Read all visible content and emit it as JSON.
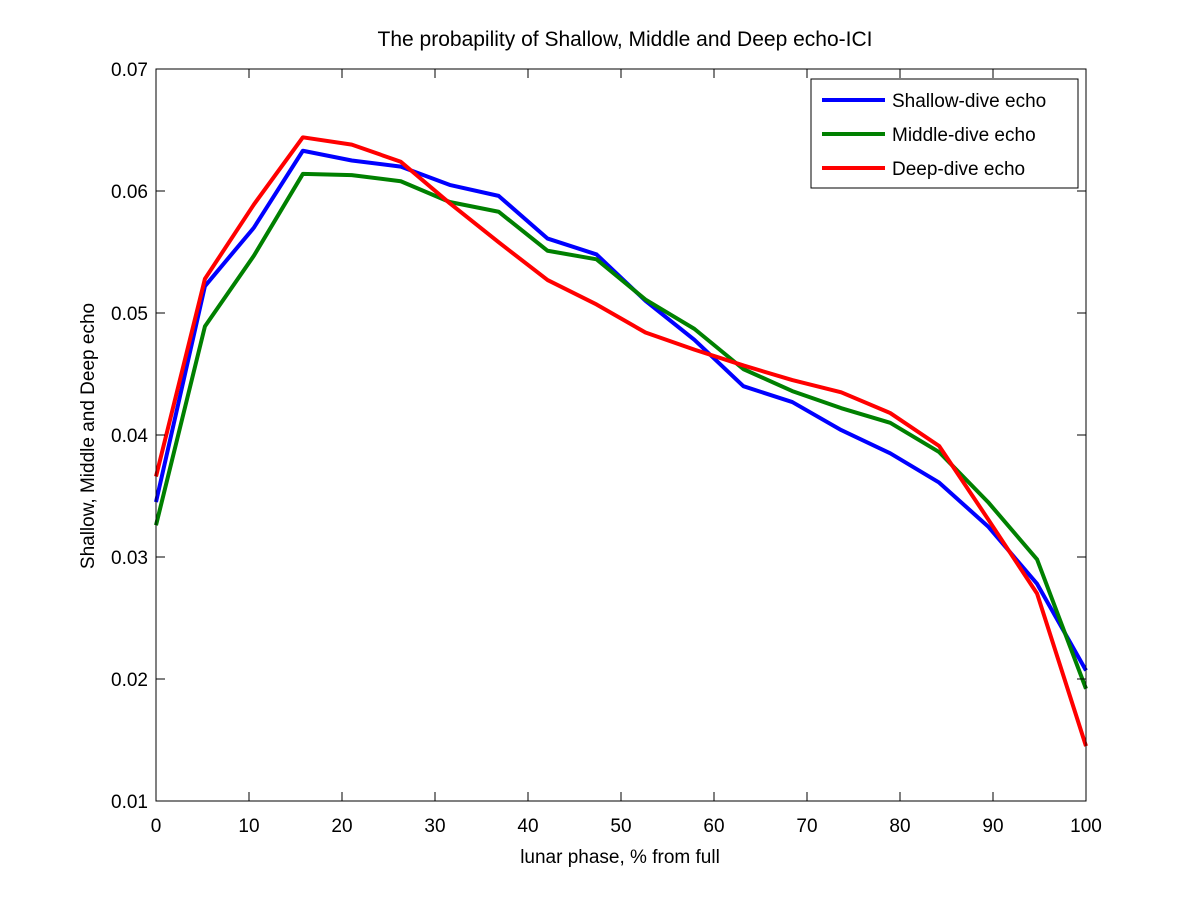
{
  "chart_data": {
    "type": "line",
    "title": "The probapility of Shallow, Middle and Deep echo-ICI",
    "xlabel": "lunar phase, % from full",
    "ylabel": "Shallow, Middle and Deep echo",
    "xlim": [
      0,
      100
    ],
    "ylim": [
      0.01,
      0.07
    ],
    "xticks": [
      0,
      10,
      20,
      30,
      40,
      50,
      60,
      70,
      80,
      90,
      100
    ],
    "xtick_labels": [
      "0",
      "10",
      "20",
      "30",
      "40",
      "50",
      "60",
      "70",
      "80",
      "90",
      "100"
    ],
    "yticks": [
      0.01,
      0.02,
      0.03,
      0.04,
      0.05,
      0.06,
      0.07
    ],
    "ytick_labels": [
      "0.01",
      "0.02",
      "0.03",
      "0.04",
      "0.05",
      "0.06",
      "0.07"
    ],
    "grid": false,
    "legend_position": "top-right",
    "x": [
      0,
      5.26,
      10.53,
      15.79,
      21.05,
      26.32,
      31.58,
      36.84,
      42.11,
      47.37,
      52.63,
      57.89,
      63.16,
      68.42,
      73.68,
      78.95,
      84.21,
      89.47,
      94.74,
      100
    ],
    "series": [
      {
        "name": "Shallow-dive echo",
        "color": "#0000ff",
        "values": [
          0.0345,
          0.0522,
          0.057,
          0.0633,
          0.0625,
          0.062,
          0.0605,
          0.0596,
          0.0561,
          0.0548,
          0.051,
          0.0478,
          0.044,
          0.0427,
          0.0404,
          0.0385,
          0.0361,
          0.0325,
          0.0278,
          0.0207
        ]
      },
      {
        "name": "Middle-dive echo",
        "color": "#008000",
        "values": [
          0.0326,
          0.0489,
          0.0547,
          0.0614,
          0.0613,
          0.0608,
          0.0591,
          0.0583,
          0.0551,
          0.0544,
          0.0511,
          0.0487,
          0.0454,
          0.0436,
          0.0422,
          0.041,
          0.0386,
          0.0345,
          0.0298,
          0.0192
        ]
      },
      {
        "name": "Deep-dive echo",
        "color": "#ff0000",
        "values": [
          0.0366,
          0.0528,
          0.0589,
          0.0644,
          0.0638,
          0.0624,
          0.059,
          0.0558,
          0.0527,
          0.0507,
          0.0484,
          0.047,
          0.0457,
          0.0445,
          0.0435,
          0.0418,
          0.0391,
          0.0331,
          0.027,
          0.0145
        ]
      }
    ]
  }
}
